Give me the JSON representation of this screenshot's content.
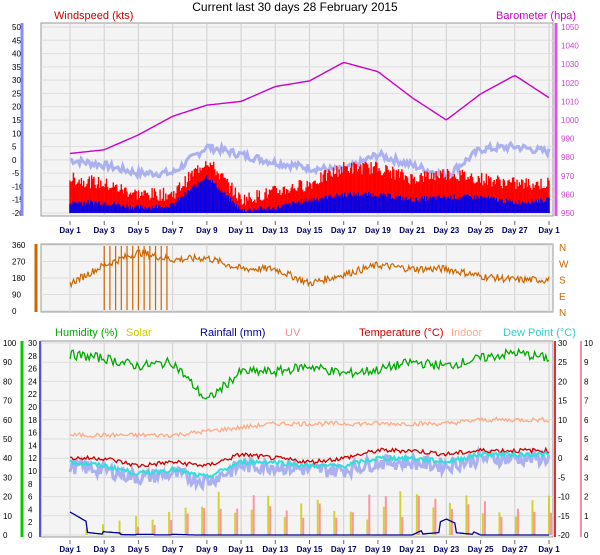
{
  "header": {
    "title": "Current last 30 days 28 February 2015"
  },
  "colors": {
    "windspeed": "#cc0000",
    "gust": "#ff0000",
    "avgwind": "#0000ee",
    "barometer": "#cc00cc",
    "temp_bg": "#aab0f0",
    "wind_dir": "#cc6600",
    "humidity": "#00aa00",
    "solar": "#cccc00",
    "rainfall": "#000099",
    "uv": "#ff8899",
    "temperature": "#cc0000",
    "indoor": "#ffaa88",
    "dewpoint": "#33dddd",
    "axis_left": "#4444bb",
    "axis_right": "#cc44cc",
    "day_labels": "#000066",
    "plot_bg": "#e9e9e9"
  },
  "x_labels": [
    "Day 1",
    "Day 3",
    "Day 5",
    "Day 7",
    "Day 9",
    "Day 11",
    "Day 13",
    "Day 15",
    "Day 17",
    "Day 19",
    "Day 21",
    "Day 23",
    "Day 25",
    "Day 27",
    "Day 1"
  ],
  "chart_data": [
    {
      "type": "line",
      "panel": "wind",
      "title": "Windspeed (kts)",
      "ylabel_right": "Barometer (hpa)",
      "ylim_left": [
        -20,
        50
      ],
      "yticks_left": [
        -20,
        -15,
        -10,
        -5,
        0,
        5,
        10,
        15,
        20,
        25,
        30,
        35,
        40,
        45,
        50
      ],
      "ylim_right": [
        950,
        1050
      ],
      "yticks_right": [
        950,
        960,
        970,
        980,
        990,
        1000,
        1010,
        1020,
        1030,
        1040,
        1050
      ],
      "x": [
        "Day 1",
        "Day 3",
        "Day 5",
        "Day 7",
        "Day 9",
        "Day 11",
        "Day 13",
        "Day 15",
        "Day 17",
        "Day 19",
        "Day 21",
        "Day 23",
        "Day 25",
        "Day 27",
        "Day 1"
      ],
      "series": [
        {
          "name": "Barometer",
          "axis": "right",
          "values": [
            982,
            984,
            992,
            1002,
            1008,
            1010,
            1018,
            1021,
            1031,
            1026,
            1012,
            1000,
            1014,
            1024,
            1012
          ]
        },
        {
          "name": "Temperature background",
          "axis": "left",
          "values": [
            0,
            -2,
            -5,
            -5,
            5,
            2,
            -1,
            -3,
            -4,
            2,
            -2,
            -6,
            4,
            5,
            3
          ]
        },
        {
          "name": "Gust",
          "axis": "left",
          "values": [
            -8,
            -10,
            -14,
            -14,
            -1,
            -16,
            -13,
            -10,
            -4,
            -4,
            -8,
            -6,
            -8,
            -10,
            -10
          ]
        },
        {
          "name": "Average wind",
          "axis": "left",
          "values": [
            -16,
            -16,
            -18,
            -17,
            -6,
            -19,
            -18,
            -15,
            -13,
            -13,
            -15,
            -14,
            -14,
            -16,
            -15
          ]
        }
      ],
      "grid": true
    },
    {
      "type": "line",
      "panel": "wind-direction",
      "ylim": [
        0,
        360
      ],
      "yticks": [
        0,
        90,
        180,
        270,
        360
      ],
      "compass_labels": [
        "N",
        "W",
        "S",
        "E",
        "N"
      ],
      "x": [
        "Day 1",
        "Day 3",
        "Day 5",
        "Day 7",
        "Day 9",
        "Day 11",
        "Day 13",
        "Day 15",
        "Day 17",
        "Day 19",
        "Day 21",
        "Day 23",
        "Day 25",
        "Day 27",
        "Day 1"
      ],
      "series": [
        {
          "name": "Wind direction",
          "values": [
            150,
            250,
            320,
            280,
            290,
            230,
            230,
            150,
            200,
            250,
            230,
            230,
            190,
            170,
            170
          ]
        }
      ],
      "grid": true
    },
    {
      "type": "line",
      "panel": "humidity-temperature",
      "legend": [
        "Humidity (%)",
        "Solar",
        "Rainfall (mm)",
        "UV",
        "Temperature (°C)",
        "Indoor",
        "Dew Point (°C)"
      ],
      "ylim_left": [
        0,
        100
      ],
      "yticks_left": [
        0,
        10,
        20,
        30,
        40,
        50,
        60,
        70,
        80,
        90,
        100
      ],
      "ylim_left_inner": [
        0,
        30
      ],
      "yticks_left_inner": [
        0,
        2,
        4,
        6,
        8,
        10,
        12,
        14,
        16,
        18,
        20,
        22,
        24,
        26,
        28,
        30
      ],
      "ylim_right_temperature": [
        -20,
        30
      ],
      "yticks_right_temperature": [
        -20,
        -15,
        -10,
        -5,
        0,
        5,
        10,
        15,
        20,
        25,
        30
      ],
      "ylim_right_uv": [
        0,
        10
      ],
      "yticks_right_uv": [
        0,
        1,
        2,
        3,
        4,
        5,
        6,
        7,
        8,
        9,
        10
      ],
      "x": [
        "Day 1",
        "Day 3",
        "Day 5",
        "Day 7",
        "Day 9",
        "Day 11",
        "Day 13",
        "Day 15",
        "Day 17",
        "Day 19",
        "Day 21",
        "Day 23",
        "Day 25",
        "Day 27",
        "Day 1"
      ],
      "series": [
        {
          "name": "Humidity",
          "axis": "left",
          "values": [
            94,
            92,
            88,
            90,
            70,
            85,
            85,
            88,
            84,
            86,
            90,
            88,
            92,
            95,
            92
          ]
        },
        {
          "name": "Indoor",
          "axis": "right_temperature",
          "values": [
            6,
            6,
            6,
            6,
            7,
            8,
            9,
            9,
            9,
            9,
            9,
            9,
            10,
            10,
            10
          ]
        },
        {
          "name": "Temperature",
          "axis": "right_temperature",
          "values": [
            0,
            0,
            -2,
            -1,
            -2,
            1,
            0,
            -1,
            0,
            2,
            2,
            1,
            2,
            2,
            2
          ]
        },
        {
          "name": "Dew Point",
          "axis": "right_temperature",
          "values": [
            -1,
            -2,
            -4,
            -3,
            -5,
            -1,
            -1,
            -2,
            -2,
            0,
            0,
            -1,
            1,
            1,
            1
          ]
        },
        {
          "name": "Rainfall",
          "axis": "left_inner",
          "values": [
            3.6,
            0.5,
            0.1,
            0.1,
            0,
            0,
            0,
            0,
            0,
            0,
            0,
            2.5,
            0,
            0,
            0
          ]
        },
        {
          "name": "UV",
          "axis": "right_uv",
          "values": [
            0,
            0,
            0.3,
            0.6,
            1.3,
            1.4,
            1.2,
            1.3,
            1.2,
            1.4,
            1.5,
            1.2,
            1.6,
            1.3,
            1.8
          ]
        },
        {
          "name": "Solar",
          "axis": "left",
          "values": [
            0,
            5,
            10,
            12,
            18,
            15,
            16,
            15,
            14,
            16,
            15,
            12,
            17,
            15,
            20
          ]
        }
      ],
      "grid": true
    }
  ]
}
